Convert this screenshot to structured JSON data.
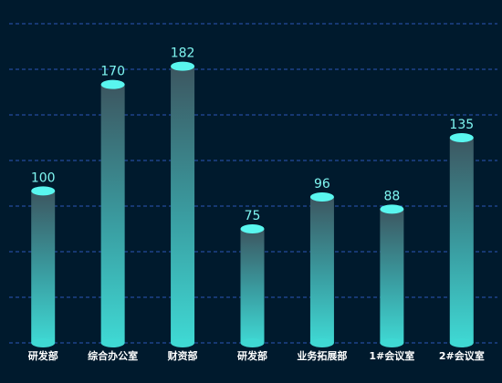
{
  "chart_data": {
    "type": "bar",
    "title": "",
    "xlabel": "",
    "ylabel": "",
    "categories": [
      "研发部",
      "综合办公室",
      "财资部",
      "研发部",
      "业务拓展部",
      "1#会议室",
      "2#会议室"
    ],
    "values": [
      100,
      170,
      182,
      75,
      96,
      88,
      135
    ],
    "ylim": [
      0,
      210
    ],
    "grid": true,
    "legend": "none",
    "colors": {
      "background": "#001a2d",
      "bar_top": "#3c5660",
      "bar_bottom": "#3fd8d3",
      "cap": "#59f6ef",
      "label": "#7ff6f1",
      "grid": "#2c56b8"
    }
  }
}
